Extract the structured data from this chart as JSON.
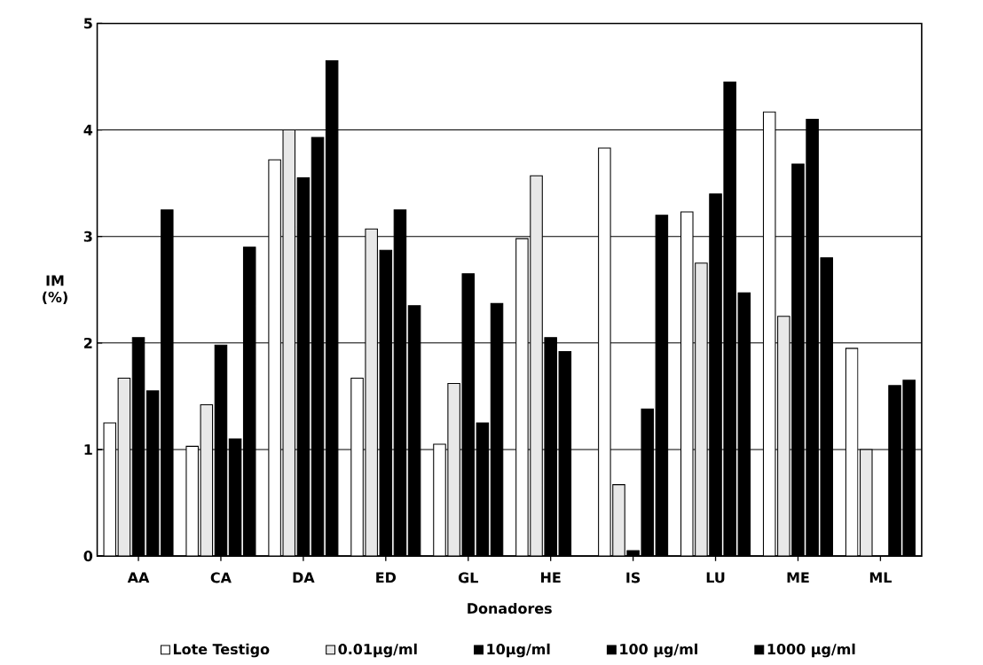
{
  "chart_data": {
    "type": "bar",
    "xlabel": "Donadores",
    "ylabel": "IM (%)",
    "categories": [
      "AA",
      "CA",
      "DA",
      "ED",
      "GL",
      "HE",
      "IS",
      "LU",
      "ME",
      "ML"
    ],
    "series": [
      {
        "name": "Lote Testigo",
        "color": "#ffffff",
        "values": [
          1.25,
          1.03,
          3.72,
          1.67,
          1.05,
          2.98,
          3.83,
          3.23,
          4.17,
          1.95
        ]
      },
      {
        "name": "0.01µg/ml",
        "color": "#e8e8e8",
        "values": [
          1.67,
          1.42,
          4.0,
          3.07,
          1.62,
          3.57,
          0.67,
          2.75,
          2.25,
          1.0
        ]
      },
      {
        "name": "10µg/ml",
        "color": "#000000",
        "values": [
          2.05,
          1.98,
          3.55,
          2.87,
          2.65,
          2.05,
          0.05,
          3.4,
          3.68,
          null
        ]
      },
      {
        "name": "100 µg/ml",
        "color": "#000000",
        "values": [
          1.55,
          1.1,
          3.93,
          3.25,
          1.25,
          1.92,
          1.38,
          4.45,
          4.1,
          1.6
        ]
      },
      {
        "name": "1000 µg/ml",
        "color": "#000000",
        "values": [
          3.25,
          2.9,
          4.65,
          2.35,
          2.37,
          null,
          3.2,
          2.47,
          2.8,
          1.65
        ]
      }
    ],
    "ylim": [
      0,
      5
    ],
    "yticks": [
      0,
      1,
      2,
      3,
      4,
      5
    ],
    "grid": "y",
    "legend": "bottom"
  }
}
